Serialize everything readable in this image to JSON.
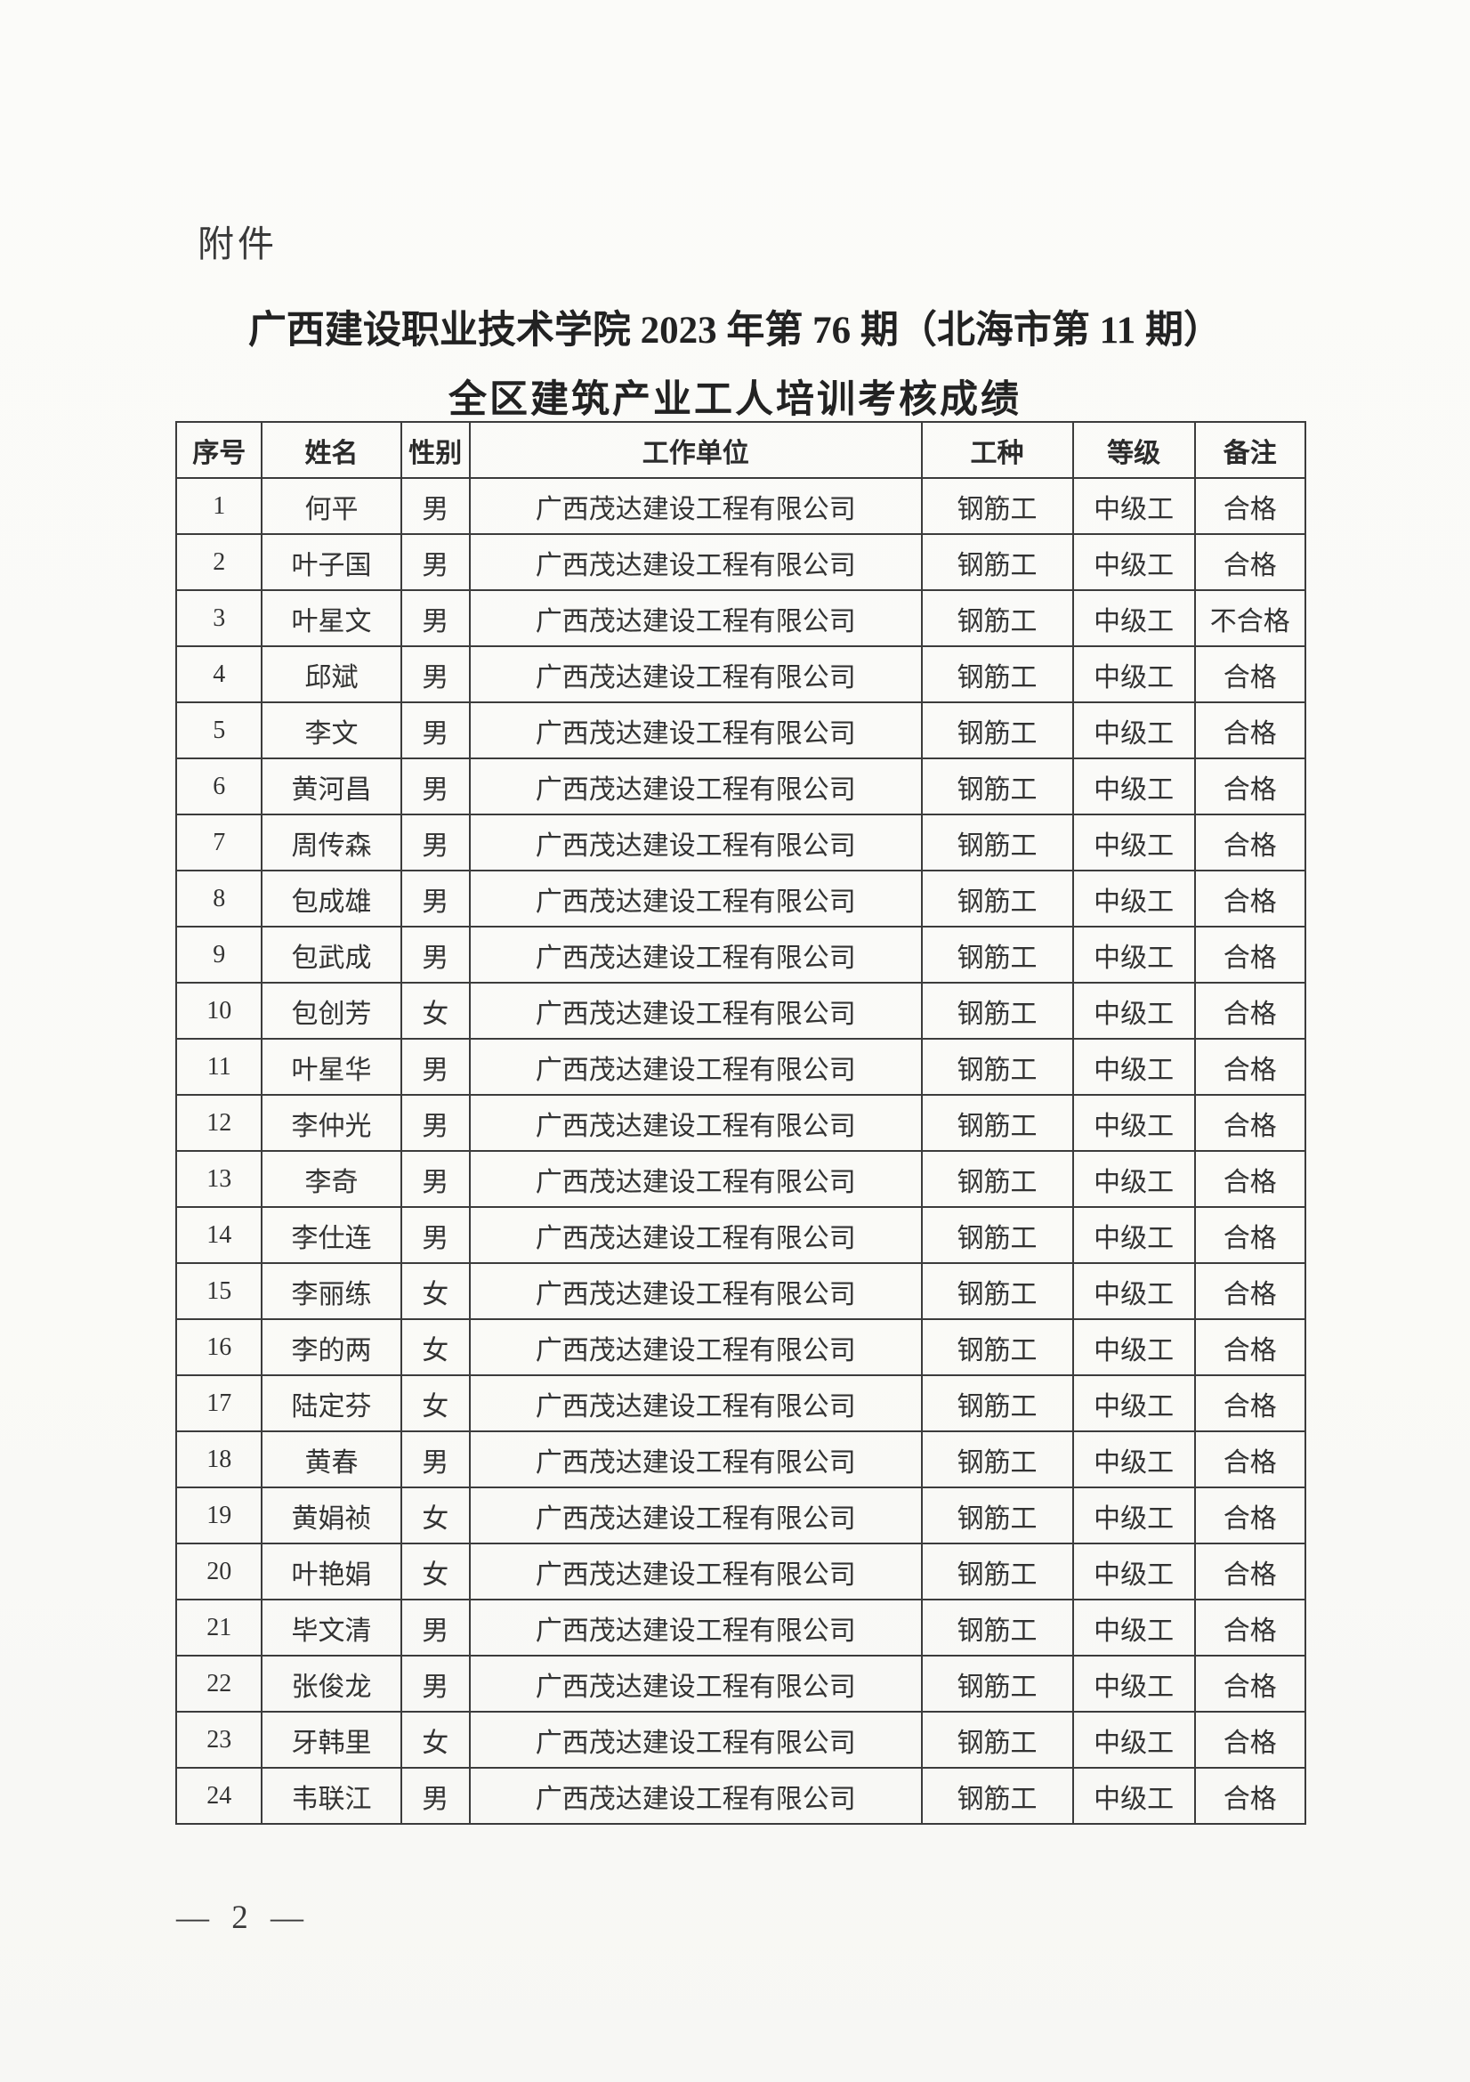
{
  "page": {
    "attachment_label": "附件",
    "title_line1": "广西建设职业技术学院 2023 年第 76 期（北海市第 11 期）",
    "title_line2": "全区建筑产业工人培训考核成绩",
    "page_number": "— 2 —"
  },
  "table": {
    "headers": [
      "序号",
      "姓名",
      "性别",
      "工作单位",
      "工种",
      "等级",
      "备注"
    ],
    "rows": [
      [
        "1",
        "何平",
        "男",
        "广西茂达建设工程有限公司",
        "钢筋工",
        "中级工",
        "合格"
      ],
      [
        "2",
        "叶子国",
        "男",
        "广西茂达建设工程有限公司",
        "钢筋工",
        "中级工",
        "合格"
      ],
      [
        "3",
        "叶星文",
        "男",
        "广西茂达建设工程有限公司",
        "钢筋工",
        "中级工",
        "不合格"
      ],
      [
        "4",
        "邱斌",
        "男",
        "广西茂达建设工程有限公司",
        "钢筋工",
        "中级工",
        "合格"
      ],
      [
        "5",
        "李文",
        "男",
        "广西茂达建设工程有限公司",
        "钢筋工",
        "中级工",
        "合格"
      ],
      [
        "6",
        "黄河昌",
        "男",
        "广西茂达建设工程有限公司",
        "钢筋工",
        "中级工",
        "合格"
      ],
      [
        "7",
        "周传森",
        "男",
        "广西茂达建设工程有限公司",
        "钢筋工",
        "中级工",
        "合格"
      ],
      [
        "8",
        "包成雄",
        "男",
        "广西茂达建设工程有限公司",
        "钢筋工",
        "中级工",
        "合格"
      ],
      [
        "9",
        "包武成",
        "男",
        "广西茂达建设工程有限公司",
        "钢筋工",
        "中级工",
        "合格"
      ],
      [
        "10",
        "包创芳",
        "女",
        "广西茂达建设工程有限公司",
        "钢筋工",
        "中级工",
        "合格"
      ],
      [
        "11",
        "叶星华",
        "男",
        "广西茂达建设工程有限公司",
        "钢筋工",
        "中级工",
        "合格"
      ],
      [
        "12",
        "李仲光",
        "男",
        "广西茂达建设工程有限公司",
        "钢筋工",
        "中级工",
        "合格"
      ],
      [
        "13",
        "李奇",
        "男",
        "广西茂达建设工程有限公司",
        "钢筋工",
        "中级工",
        "合格"
      ],
      [
        "14",
        "李仕连",
        "男",
        "广西茂达建设工程有限公司",
        "钢筋工",
        "中级工",
        "合格"
      ],
      [
        "15",
        "李丽练",
        "女",
        "广西茂达建设工程有限公司",
        "钢筋工",
        "中级工",
        "合格"
      ],
      [
        "16",
        "李的两",
        "女",
        "广西茂达建设工程有限公司",
        "钢筋工",
        "中级工",
        "合格"
      ],
      [
        "17",
        "陆定芬",
        "女",
        "广西茂达建设工程有限公司",
        "钢筋工",
        "中级工",
        "合格"
      ],
      [
        "18",
        "黄春",
        "男",
        "广西茂达建设工程有限公司",
        "钢筋工",
        "中级工",
        "合格"
      ],
      [
        "19",
        "黄娟祯",
        "女",
        "广西茂达建设工程有限公司",
        "钢筋工",
        "中级工",
        "合格"
      ],
      [
        "20",
        "叶艳娟",
        "女",
        "广西茂达建设工程有限公司",
        "钢筋工",
        "中级工",
        "合格"
      ],
      [
        "21",
        "毕文清",
        "男",
        "广西茂达建设工程有限公司",
        "钢筋工",
        "中级工",
        "合格"
      ],
      [
        "22",
        "张俊龙",
        "男",
        "广西茂达建设工程有限公司",
        "钢筋工",
        "中级工",
        "合格"
      ],
      [
        "23",
        "牙韩里",
        "女",
        "广西茂达建设工程有限公司",
        "钢筋工",
        "中级工",
        "合格"
      ],
      [
        "24",
        "韦联江",
        "男",
        "广西茂达建设工程有限公司",
        "钢筋工",
        "中级工",
        "合格"
      ]
    ]
  }
}
